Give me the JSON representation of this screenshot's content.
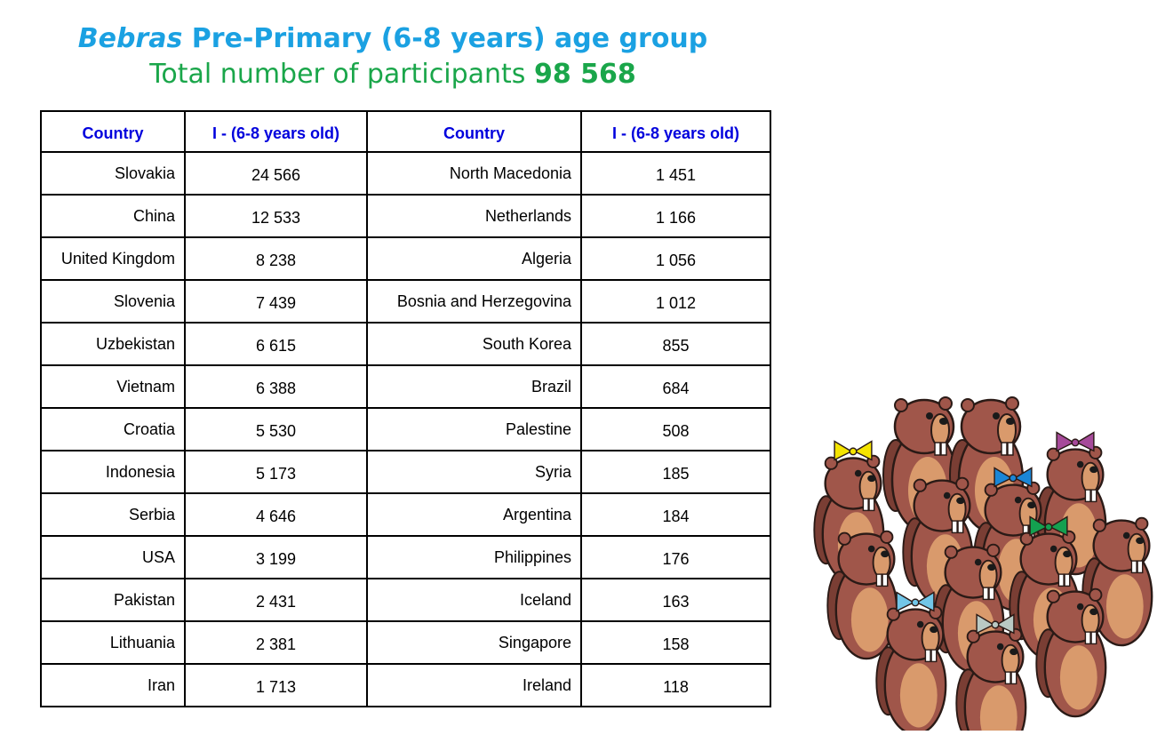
{
  "title": {
    "brand": "Bebras",
    "line1_rest": "Pre-Primary (6-8 years) age group",
    "line2_label": "Total number of participants",
    "line2_total": "98 568"
  },
  "table": {
    "headers": [
      "Country",
      "I - (6-8 years old)",
      "Country",
      "I - (6-8 years old)"
    ],
    "rows": [
      {
        "c1": "Slovakia",
        "v1": "24 566",
        "c2": "North Macedonia",
        "v2": "1 451"
      },
      {
        "c1": "China",
        "v1": "12 533",
        "c2": "Netherlands",
        "v2": "1 166"
      },
      {
        "c1": "United Kingdom",
        "v1": "8 238",
        "c2": "Algeria",
        "v2": "1 056"
      },
      {
        "c1": "Slovenia",
        "v1": "7 439",
        "c2": "Bosnia and Herzegovina",
        "v2": "1 012"
      },
      {
        "c1": "Uzbekistan",
        "v1": "6 615",
        "c2": "South Korea",
        "v2": "855"
      },
      {
        "c1": "Vietnam",
        "v1": "6 388",
        "c2": "Brazil",
        "v2": "684"
      },
      {
        "c1": "Croatia",
        "v1": "5 530",
        "c2": "Palestine",
        "v2": "508"
      },
      {
        "c1": "Indonesia",
        "v1": "5 173",
        "c2": "Syria",
        "v2": "185"
      },
      {
        "c1": "Serbia",
        "v1": "4 646",
        "c2": "Argentina",
        "v2": "184"
      },
      {
        "c1": "USA",
        "v1": "3 199",
        "c2": "Philippines",
        "v2": "176"
      },
      {
        "c1": "Pakistan",
        "v1": "2 431",
        "c2": "Iceland",
        "v2": "163"
      },
      {
        "c1": "Lithuania",
        "v1": "2 381",
        "c2": "Singapore",
        "v2": "158"
      },
      {
        "c1": "Iran",
        "v1": "1 713",
        "c2": "Ireland",
        "v2": "118"
      }
    ]
  },
  "colors": {
    "title_blue": "#1ba1e2",
    "title_green": "#1aa64a",
    "header_text": "#0000dd",
    "beaver_body": "#a0564a",
    "beaver_belly": "#d99a6c",
    "teeth": "#ffffff",
    "bows": [
      "#f5e400",
      "#a64a9a",
      "#1a86d6",
      "#14a050",
      "#72c6e8",
      "#b9c9c4"
    ]
  },
  "illustration": {
    "icon": "group-of-beavers-illustration"
  }
}
